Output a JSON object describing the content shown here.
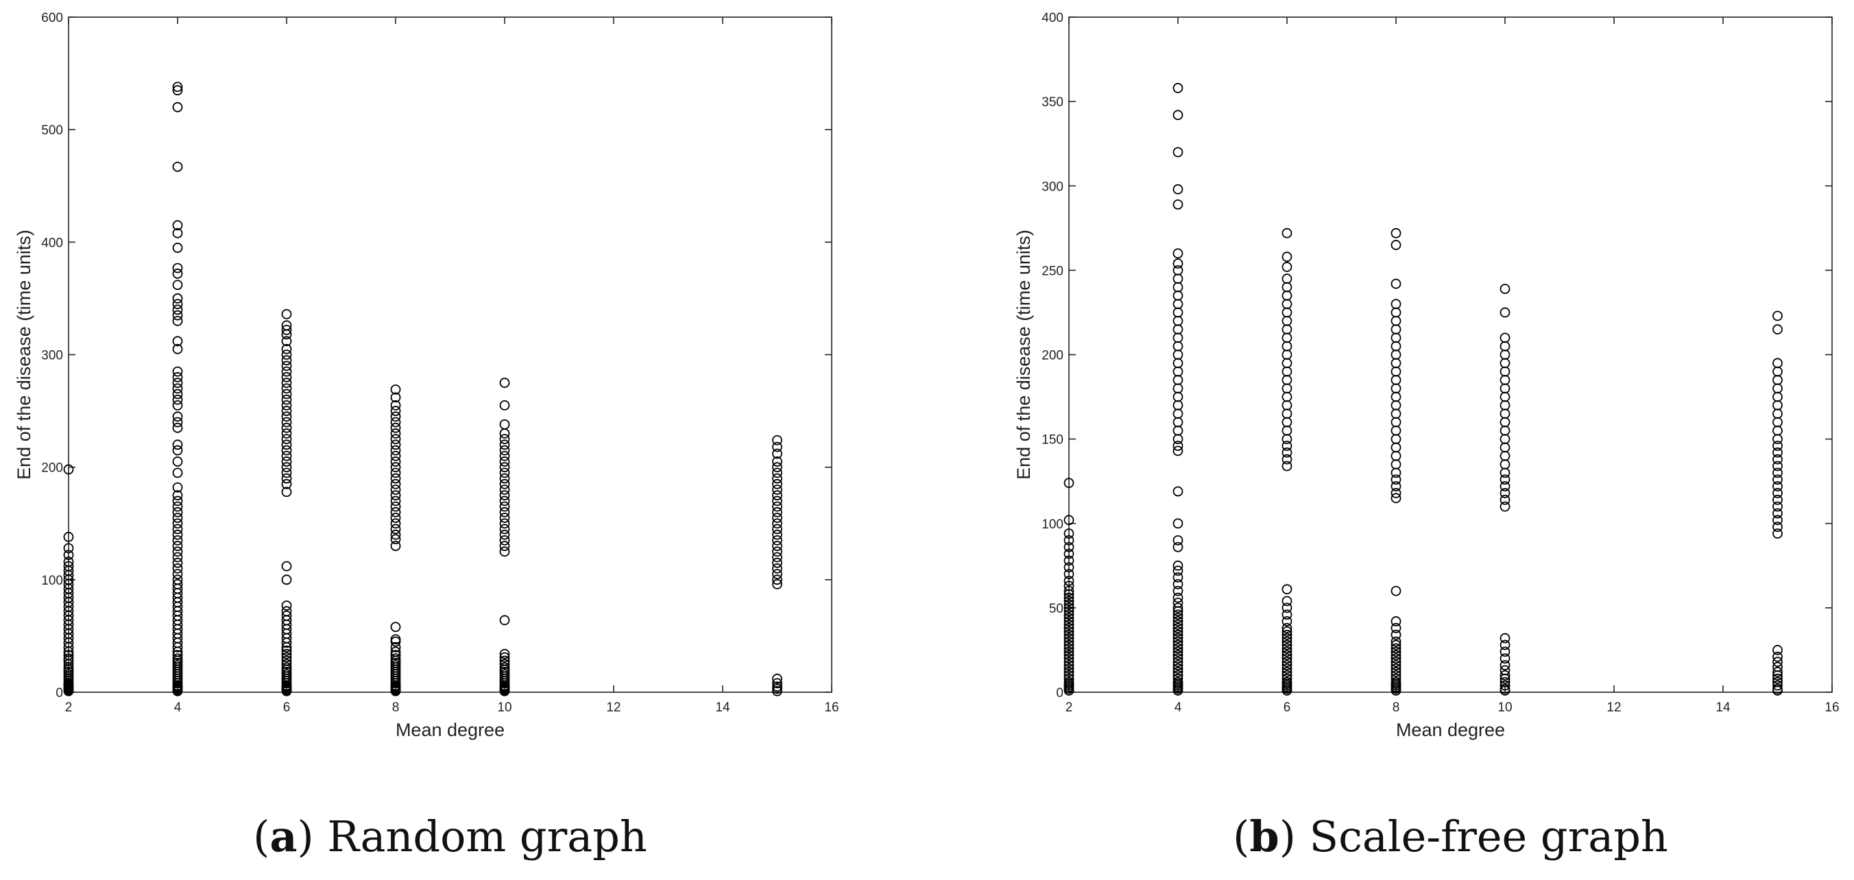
{
  "chart_data": [
    {
      "type": "scatter",
      "xlabel": "Mean degree",
      "ylabel": "End of the disease (time units)",
      "xlim": [
        2,
        16
      ],
      "ylim": [
        0,
        600
      ],
      "xticks": [
        2,
        4,
        6,
        8,
        10,
        12,
        14,
        16
      ],
      "yticks": [
        0,
        100,
        200,
        300,
        400,
        500,
        600
      ],
      "grid": false,
      "caption": {
        "letter": "a",
        "text": "Random graph"
      },
      "groups": [
        {
          "x": 2,
          "y": [
            1,
            2,
            3,
            4,
            5,
            6,
            7,
            8,
            10,
            12,
            14,
            16,
            18,
            20,
            22,
            25,
            28,
            30,
            33,
            36,
            40,
            44,
            48,
            52,
            56,
            60,
            64,
            68,
            72,
            76,
            80,
            84,
            88,
            92,
            96,
            100,
            104,
            108,
            112,
            116,
            122,
            128,
            138,
            198
          ]
        },
        {
          "x": 4,
          "y": [
            1,
            2,
            3,
            4,
            5,
            6,
            8,
            10,
            12,
            14,
            16,
            18,
            20,
            22,
            24,
            26,
            28,
            30,
            33,
            36,
            40,
            44,
            48,
            52,
            56,
            60,
            64,
            68,
            72,
            76,
            80,
            84,
            88,
            92,
            96,
            100,
            105,
            110,
            115,
            120,
            125,
            130,
            135,
            140,
            145,
            150,
            155,
            160,
            165,
            170,
            175,
            182,
            195,
            205,
            215,
            220,
            235,
            240,
            245,
            255,
            260,
            265,
            270,
            275,
            280,
            285,
            305,
            312,
            330,
            335,
            340,
            345,
            350,
            362,
            372,
            377,
            395,
            408,
            415,
            467,
            520,
            535,
            538
          ]
        },
        {
          "x": 6,
          "y": [
            1,
            2,
            3,
            4,
            5,
            6,
            8,
            10,
            12,
            14,
            16,
            18,
            20,
            22,
            25,
            28,
            31,
            34,
            37,
            40,
            44,
            48,
            52,
            56,
            60,
            64,
            68,
            72,
            77,
            100,
            112,
            178,
            185,
            190,
            195,
            200,
            205,
            210,
            215,
            220,
            225,
            230,
            235,
            240,
            245,
            250,
            255,
            260,
            265,
            270,
            275,
            280,
            285,
            290,
            295,
            300,
            305,
            312,
            318,
            322,
            326,
            336
          ]
        },
        {
          "x": 8,
          "y": [
            1,
            2,
            3,
            4,
            5,
            6,
            8,
            10,
            12,
            14,
            16,
            18,
            20,
            22,
            24,
            26,
            28,
            30,
            33,
            36,
            40,
            45,
            47,
            58,
            130,
            136,
            140,
            145,
            150,
            155,
            160,
            165,
            170,
            175,
            180,
            185,
            190,
            195,
            200,
            205,
            210,
            215,
            220,
            225,
            230,
            235,
            240,
            245,
            250,
            255,
            262,
            269
          ]
        },
        {
          "x": 10,
          "y": [
            1,
            2,
            3,
            4,
            5,
            6,
            8,
            10,
            12,
            14,
            16,
            18,
            20,
            22,
            25,
            28,
            31,
            34,
            64,
            125,
            130,
            135,
            140,
            145,
            150,
            155,
            160,
            165,
            170,
            175,
            180,
            185,
            190,
            195,
            200,
            205,
            210,
            215,
            220,
            225,
            230,
            238,
            255,
            275
          ]
        },
        {
          "x": 15,
          "y": [
            1,
            3,
            5,
            8,
            12,
            96,
            100,
            105,
            110,
            115,
            120,
            125,
            130,
            135,
            140,
            145,
            150,
            155,
            160,
            165,
            170,
            175,
            180,
            185,
            190,
            195,
            200,
            205,
            212,
            218,
            224
          ]
        }
      ]
    },
    {
      "type": "scatter",
      "xlabel": "Mean degree",
      "ylabel": "End of the disease (time units)",
      "xlim": [
        2,
        16
      ],
      "ylim": [
        0,
        400
      ],
      "xticks": [
        2,
        4,
        6,
        8,
        10,
        12,
        14,
        16
      ],
      "yticks": [
        0,
        50,
        100,
        150,
        200,
        250,
        300,
        350,
        400
      ],
      "grid": false,
      "caption": {
        "letter": "b",
        "text": "Scale-free graph"
      },
      "groups": [
        {
          "x": 2,
          "y": [
            1,
            2,
            3,
            4,
            5,
            6,
            8,
            10,
            12,
            14,
            16,
            18,
            20,
            22,
            24,
            26,
            28,
            30,
            32,
            34,
            36,
            38,
            40,
            42,
            44,
            46,
            48,
            50,
            52,
            54,
            56,
            58,
            60,
            63,
            66,
            70,
            74,
            78,
            82,
            86,
            90,
            94,
            102,
            124
          ]
        },
        {
          "x": 4,
          "y": [
            1,
            2,
            3,
            4,
            5,
            6,
            8,
            10,
            12,
            14,
            16,
            18,
            20,
            22,
            24,
            26,
            28,
            30,
            32,
            34,
            36,
            38,
            40,
            42,
            44,
            46,
            48,
            50,
            53,
            56,
            60,
            64,
            68,
            72,
            75,
            86,
            90,
            100,
            119,
            143,
            146,
            150,
            155,
            160,
            165,
            170,
            175,
            180,
            185,
            190,
            195,
            200,
            205,
            210,
            215,
            220,
            225,
            230,
            235,
            240,
            245,
            250,
            254,
            260,
            289,
            298,
            320,
            342,
            358
          ]
        },
        {
          "x": 6,
          "y": [
            1,
            2,
            3,
            4,
            5,
            6,
            8,
            10,
            12,
            14,
            16,
            18,
            20,
            22,
            24,
            26,
            28,
            30,
            32,
            34,
            36,
            38,
            42,
            46,
            50,
            54,
            61,
            134,
            138,
            142,
            146,
            150,
            155,
            160,
            165,
            170,
            175,
            180,
            185,
            190,
            195,
            200,
            205,
            210,
            215,
            220,
            225,
            230,
            235,
            240,
            245,
            252,
            258,
            272
          ]
        },
        {
          "x": 8,
          "y": [
            1,
            2,
            3,
            4,
            5,
            6,
            8,
            10,
            12,
            14,
            16,
            18,
            20,
            22,
            24,
            26,
            28,
            30,
            34,
            38,
            42,
            60,
            115,
            118,
            122,
            126,
            130,
            135,
            140,
            145,
            150,
            155,
            160,
            165,
            170,
            175,
            180,
            185,
            190,
            195,
            200,
            205,
            210,
            215,
            220,
            225,
            230,
            242,
            265,
            272
          ]
        },
        {
          "x": 10,
          "y": [
            1,
            2,
            4,
            6,
            8,
            10,
            13,
            16,
            20,
            24,
            28,
            32,
            110,
            114,
            118,
            122,
            126,
            130,
            135,
            140,
            145,
            150,
            155,
            160,
            165,
            170,
            175,
            180,
            185,
            190,
            195,
            200,
            205,
            210,
            225,
            239
          ]
        },
        {
          "x": 15,
          "y": [
            1,
            2,
            4,
            6,
            8,
            10,
            12,
            15,
            18,
            21,
            25,
            94,
            98,
            102,
            106,
            110,
            114,
            118,
            122,
            126,
            130,
            134,
            138,
            142,
            146,
            150,
            155,
            160,
            165,
            170,
            175,
            180,
            185,
            190,
            195,
            215,
            223
          ]
        }
      ]
    }
  ]
}
